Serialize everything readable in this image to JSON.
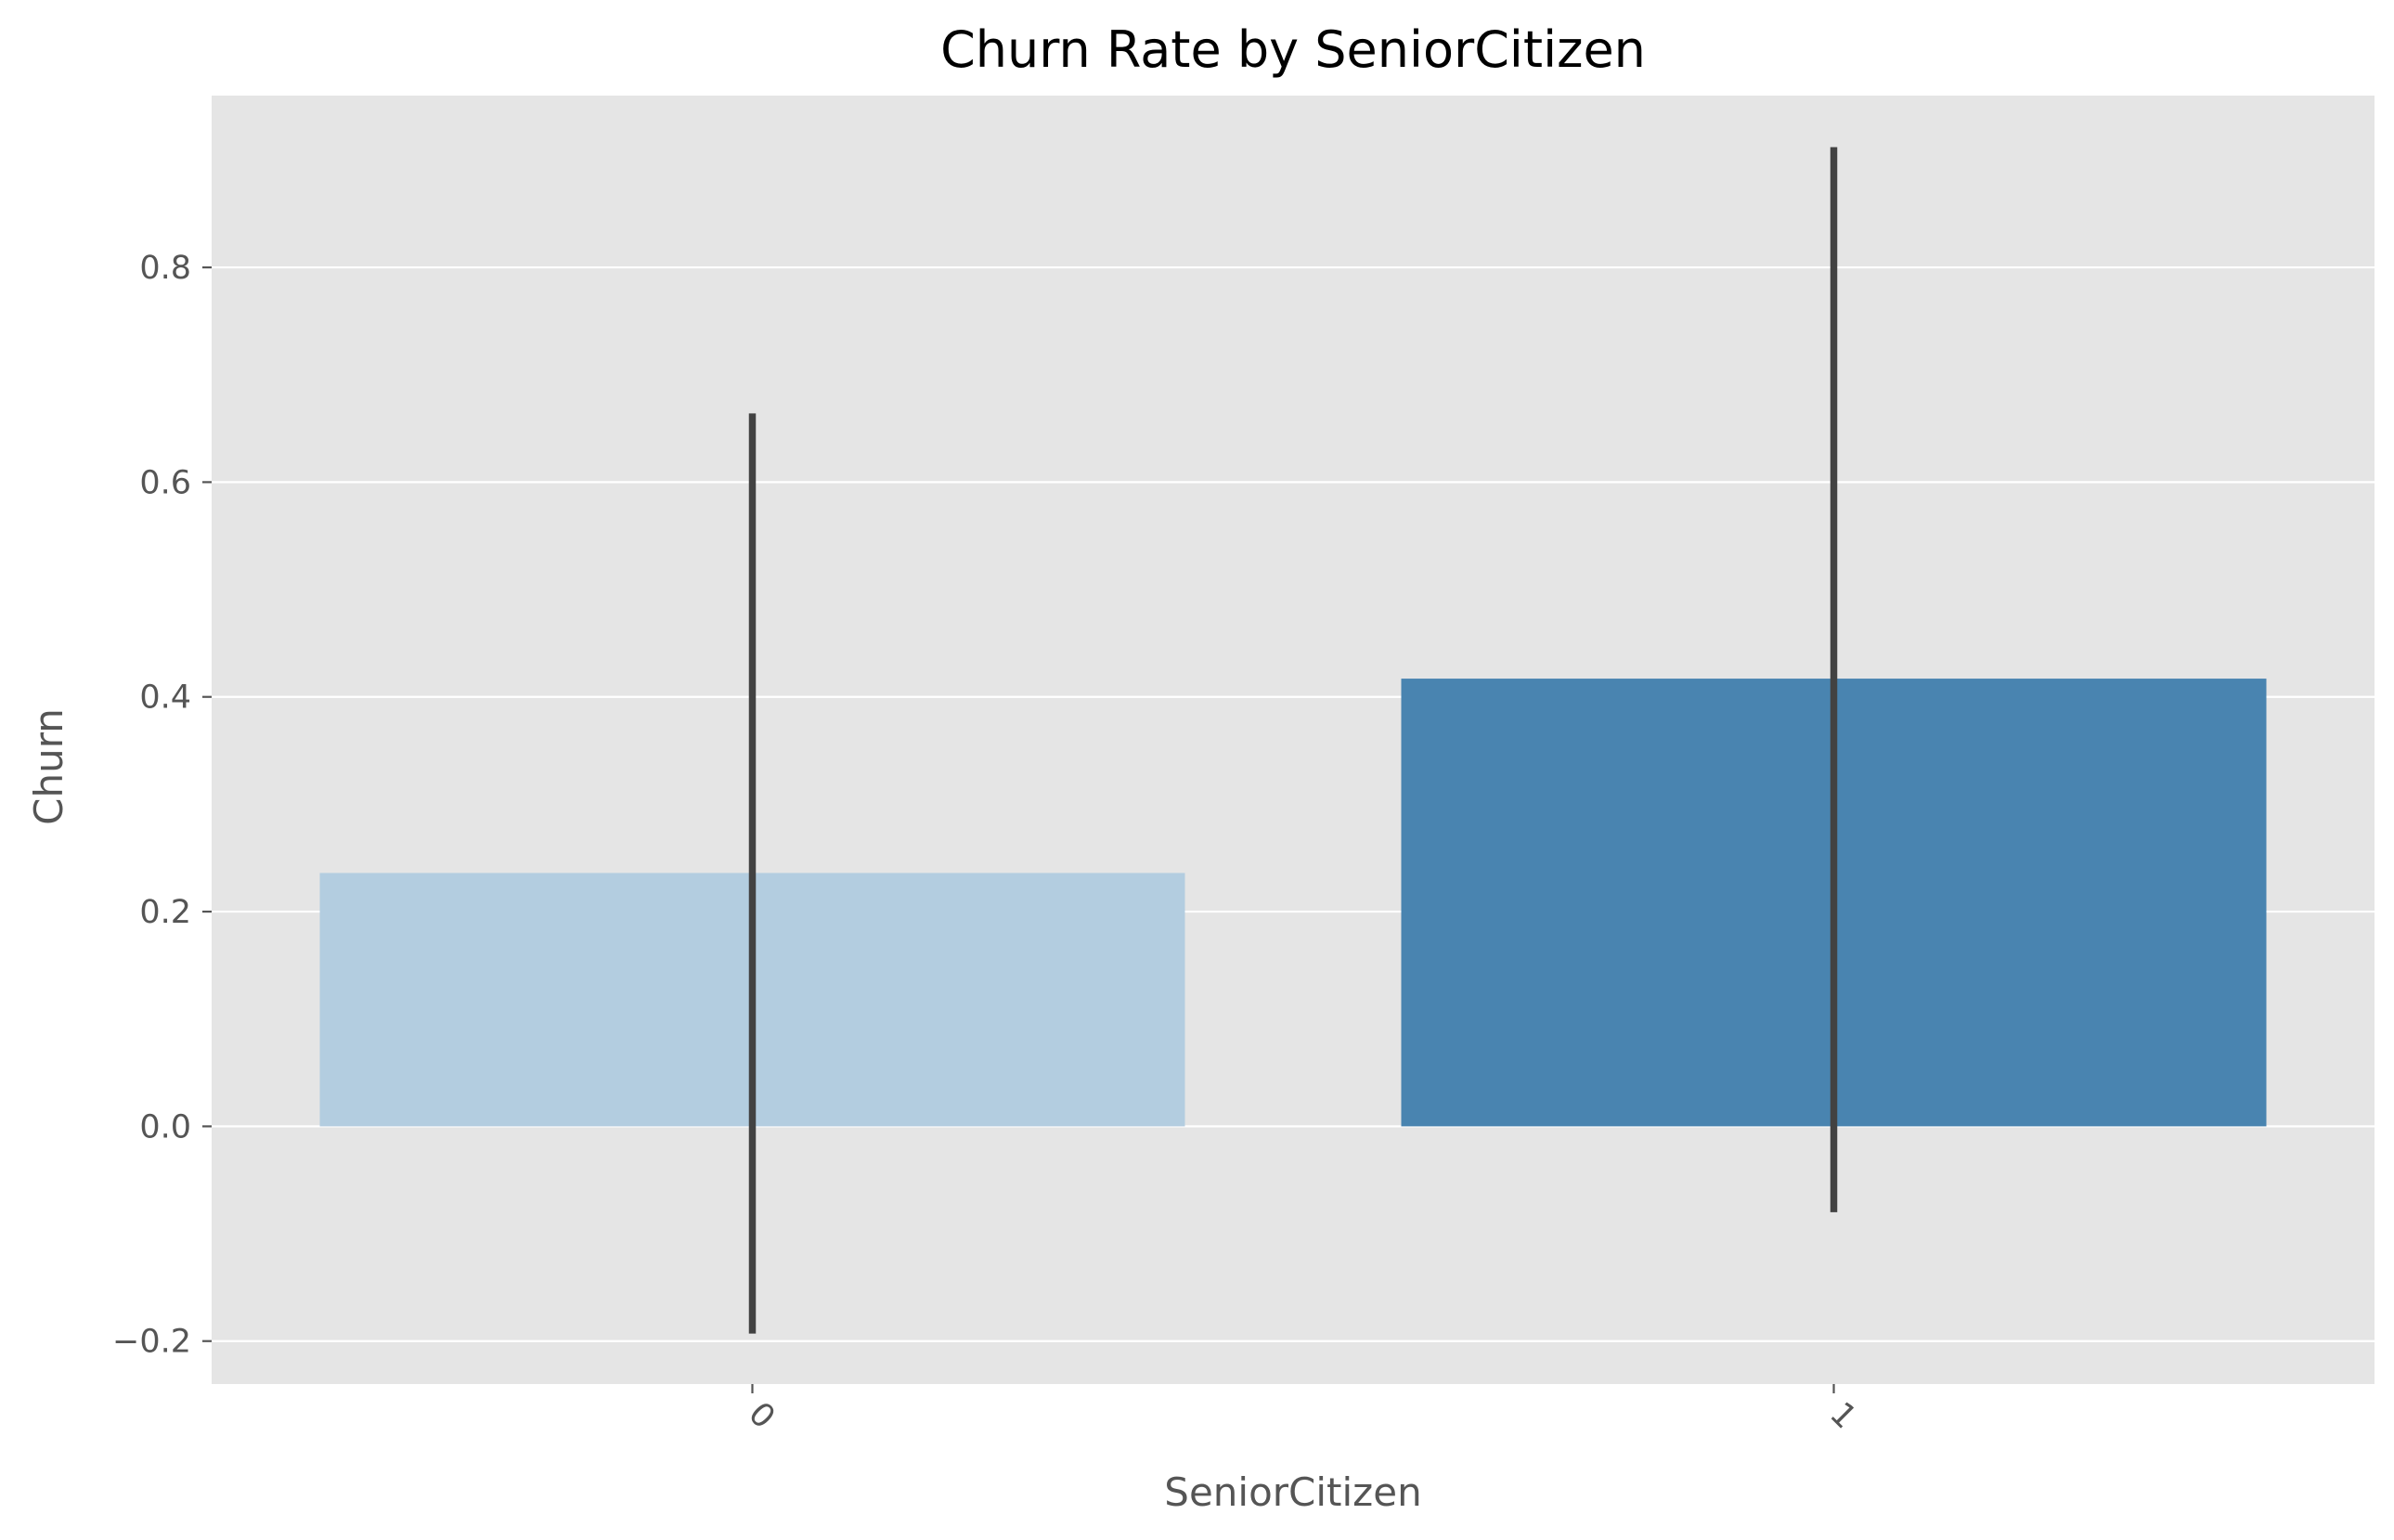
{
  "chart_data": {
    "type": "bar",
    "title": "Churn Rate by SeniorCitizen",
    "xlabel": "SeniorCitizen",
    "ylabel": "Churn",
    "categories": [
      "0",
      "1"
    ],
    "values": [
      0.236,
      0.417
    ],
    "error_bars": [
      {
        "low": -0.193,
        "high": 0.664
      },
      {
        "low": -0.08,
        "high": 0.912
      }
    ],
    "bar_colors": [
      "#b3cde0",
      "#4984b0"
    ],
    "error_bar_color": "#424242",
    "ylim": [
      -0.24,
      0.96
    ],
    "yticks": [
      -0.2,
      0.0,
      0.2,
      0.4,
      0.6,
      0.8
    ],
    "ytick_labels": [
      "−0.2",
      "0.0",
      "0.2",
      "0.4",
      "0.6",
      "0.8"
    ],
    "xtick_rotation": "45 degrees",
    "grid": true,
    "background_color": "#e5e5e5",
    "grid_color": "#ffffff"
  }
}
